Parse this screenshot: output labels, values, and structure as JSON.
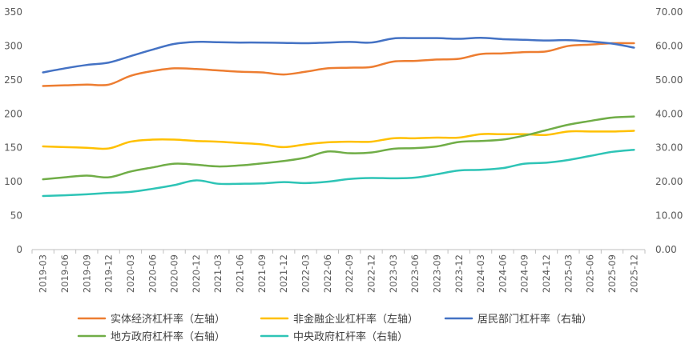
{
  "chart_data": {
    "type": "line",
    "title": "",
    "x": [
      "2019-03",
      "2019-06",
      "2019-09",
      "2019-12",
      "2020-03",
      "2020-06",
      "2020-09",
      "2020-12",
      "2021-03",
      "2021-06",
      "2021-09",
      "2021-12",
      "2022-03",
      "2022-06",
      "2022-09",
      "2022-12",
      "2023-03",
      "2023-06",
      "2023-09",
      "2023-12",
      "2024-03",
      "2024-06",
      "2024-09",
      "2024-12",
      "2025-03",
      "2025-06",
      "2025-09",
      "2025-12"
    ],
    "left_axis": {
      "ylim": [
        0,
        350
      ],
      "ticks": [
        "0",
        "50",
        "100",
        "150",
        "200",
        "250",
        "300",
        "350"
      ]
    },
    "right_axis": {
      "ylim": [
        0,
        70
      ],
      "ticks": [
        "0.00",
        "10.00",
        "20.00",
        "30.00",
        "40.00",
        "50.00",
        "60.00",
        "70.00"
      ]
    },
    "series": [
      {
        "name": "实体经济杠杆率（左轴）",
        "axis": "left",
        "color": "#ED7D31",
        "values": [
          241,
          242,
          243,
          243,
          256,
          263,
          267,
          266,
          264,
          262,
          261,
          258,
          262,
          267,
          268,
          269,
          277,
          278,
          280,
          281,
          288,
          289,
          291,
          292,
          300,
          302,
          304,
          304
        ]
      },
      {
        "name": "非金融企业杠杆率（左轴）",
        "axis": "left",
        "color": "#FFC000",
        "values": [
          152,
          151,
          150,
          149,
          159,
          162,
          162,
          160,
          159,
          157,
          155,
          151,
          155,
          158,
          159,
          159,
          164,
          164,
          165,
          165,
          170,
          170,
          170,
          169,
          174,
          174,
          174,
          175
        ]
      },
      {
        "name": "居民部门杠杆率（右轴）",
        "axis": "right",
        "color": "#4472C4",
        "values": [
          52.2,
          53.4,
          54.4,
          55.1,
          57.0,
          58.9,
          60.6,
          61.2,
          61.1,
          61.0,
          61.0,
          60.9,
          60.8,
          61.0,
          61.2,
          61.0,
          62.2,
          62.3,
          62.3,
          62.1,
          62.4,
          62.0,
          61.8,
          61.6,
          61.7,
          61.3,
          60.7,
          59.5
        ]
      },
      {
        "name": "地方政府杠杆率（右轴）",
        "axis": "right",
        "color": "#70AD47",
        "values": [
          20.7,
          21.3,
          21.8,
          21.3,
          23.0,
          24.2,
          25.3,
          25.0,
          24.5,
          24.8,
          25.4,
          26.1,
          27.1,
          28.9,
          28.4,
          28.6,
          29.7,
          29.9,
          30.4,
          31.7,
          32.0,
          32.4,
          33.6,
          35.2,
          36.8,
          37.9,
          38.9,
          39.2
        ]
      },
      {
        "name": "中央政府杠杆率（右轴）",
        "axis": "right",
        "color": "#2EC4B6",
        "values": [
          15.8,
          16.0,
          16.3,
          16.7,
          17.0,
          17.9,
          19.0,
          20.4,
          19.4,
          19.4,
          19.5,
          19.9,
          19.6,
          20.0,
          20.8,
          21.1,
          21.0,
          21.2,
          22.2,
          23.3,
          23.5,
          24.0,
          25.3,
          25.6,
          26.4,
          27.6,
          28.8,
          29.4
        ]
      }
    ],
    "legend": {
      "position": "bottom"
    }
  }
}
